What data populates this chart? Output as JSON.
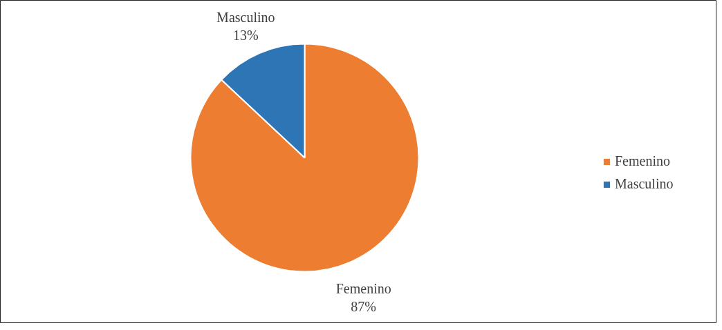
{
  "chart_data": {
    "type": "pie",
    "categories": [
      "Femenino",
      "Masculino"
    ],
    "values": [
      87,
      13
    ],
    "colors": [
      "#ed7d31",
      "#2e75b6"
    ],
    "value_labels": [
      "87%",
      "13%"
    ],
    "legend": "right"
  }
}
